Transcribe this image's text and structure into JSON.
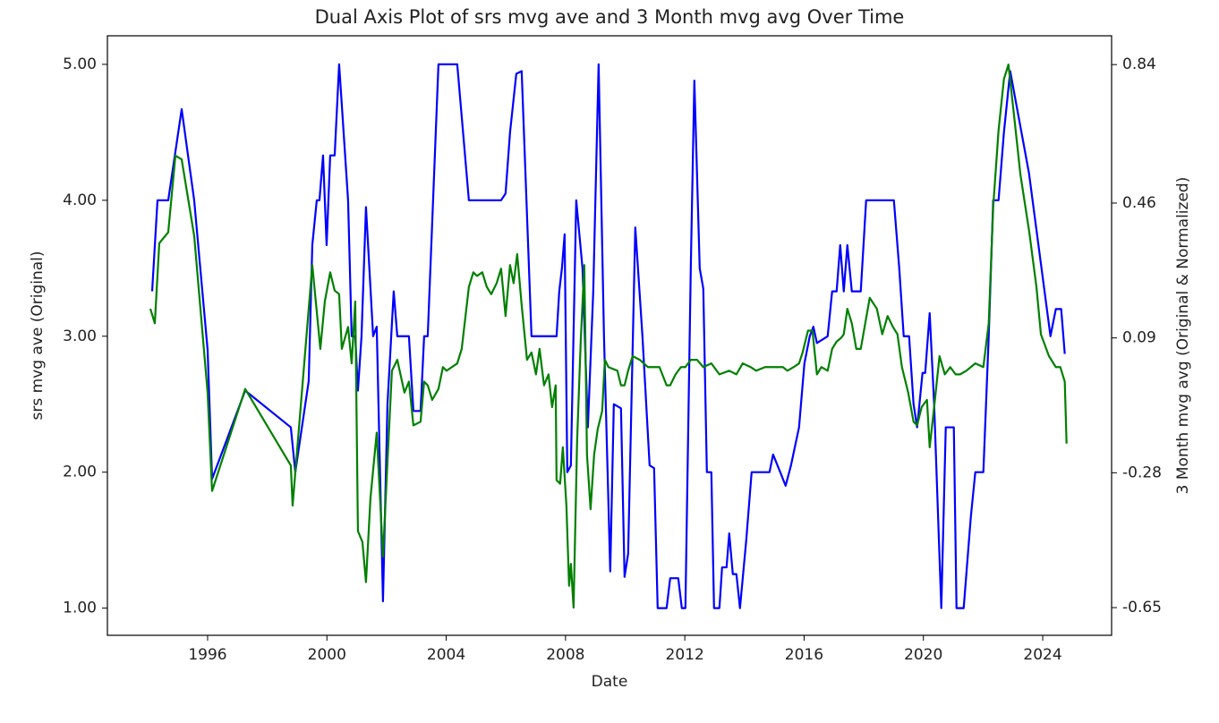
{
  "chart_data": {
    "type": "line",
    "title": "Dual Axis Plot of srs mvg ave and 3 Month mvg avg Over Time",
    "xlabel": "Date",
    "ylabel": "srs mvg ave (Original)",
    "y2label": "3 Month mvg avg (Original & Normalized)",
    "ylabel_color": "#4040ff",
    "y2label_color": "#008000",
    "ytick_color": "#ff0000",
    "y2tick_color": "#ffa500",
    "xlim": [
      1992.64,
      2026.31
    ],
    "xticks": [
      1996,
      2000,
      2004,
      2008,
      2012,
      2016,
      2020,
      2024
    ],
    "ylim": [
      0.8,
      5.21
    ],
    "yticks": [
      {
        "value": 1,
        "label": "1.00"
      },
      {
        "value": 2,
        "label": "2.00"
      },
      {
        "value": 3,
        "label": "3.00"
      },
      {
        "value": 4,
        "label": "4.00"
      },
      {
        "value": 5,
        "label": "5.00"
      }
    ],
    "y2lim": [
      -0.726,
      0.919
    ],
    "y2ticks": [
      -0.65,
      -0.28,
      0.09,
      0.46,
      0.84
    ],
    "series": [
      {
        "color": "#0000ff",
        "axis": "y",
        "x": [
          1994.14,
          1994.32,
          1994.68,
          1995.13,
          1995.55,
          1996.0,
          1996.15,
          1997.26,
          1998.79,
          1998.94,
          1999.39,
          1999.51,
          1999.66,
          1999.75,
          1999.87,
          1999.99,
          2000.11,
          2000.26,
          2000.41,
          2000.71,
          2000.83,
          2000.95,
          2001.04,
          2001.16,
          2001.31,
          2001.55,
          2001.67,
          2001.88,
          2002.03,
          2002.24,
          2002.36,
          2002.75,
          2002.9,
          2003.14,
          2003.26,
          2003.38,
          2003.74,
          2004.37,
          2004.76,
          2005.84,
          2005.99,
          2006.14,
          2006.35,
          2006.53,
          2006.86,
          2007.7,
          2007.79,
          2007.88,
          2007.97,
          2008.06,
          2008.18,
          2008.36,
          2008.57,
          2008.75,
          2008.93,
          2009.11,
          2009.29,
          2009.5,
          2009.62,
          2009.86,
          2009.98,
          2010.1,
          2010.34,
          2010.58,
          2010.82,
          2010.97,
          2011.09,
          2011.39,
          2011.51,
          2011.78,
          2011.9,
          2012.02,
          2012.2,
          2012.32,
          2012.5,
          2012.62,
          2012.74,
          2012.89,
          2012.98,
          2013.16,
          2013.25,
          2013.4,
          2013.49,
          2013.61,
          2013.73,
          2013.85,
          2014.06,
          2014.24,
          2014.84,
          2014.96,
          2015.2,
          2015.38,
          2015.56,
          2015.83,
          2016.01,
          2016.19,
          2016.31,
          2016.43,
          2016.79,
          2016.94,
          2017.09,
          2017.21,
          2017.33,
          2017.45,
          2017.6,
          2017.9,
          2018.08,
          2019.01,
          2019.19,
          2019.34,
          2019.52,
          2019.67,
          2019.79,
          2019.97,
          2020.06,
          2020.21,
          2020.36,
          2020.6,
          2020.75,
          2021.02,
          2021.11,
          2021.35,
          2021.59,
          2021.74,
          2022.01,
          2022.19,
          2022.34,
          2022.52,
          2022.7,
          2022.91,
          2023.54,
          2024.26,
          2024.44,
          2024.62,
          2024.74
        ],
        "values": [
          3.33,
          4.0,
          4.0,
          4.67,
          4.0,
          2.9,
          1.95,
          2.6,
          2.33,
          2.0,
          2.67,
          3.67,
          4.0,
          4.0,
          4.33,
          3.67,
          4.33,
          4.33,
          5.0,
          4.0,
          3.0,
          3.0,
          2.6,
          3.0,
          3.95,
          3.0,
          3.07,
          1.05,
          2.5,
          3.33,
          3.0,
          3.0,
          2.45,
          2.45,
          3.0,
          3.0,
          5.0,
          5.0,
          4.0,
          4.0,
          4.05,
          4.5,
          4.93,
          4.95,
          3.0,
          3.0,
          3.33,
          3.5,
          3.75,
          2.0,
          2.05,
          4.0,
          3.5,
          2.33,
          3.33,
          5.0,
          3.0,
          1.27,
          2.5,
          2.47,
          1.23,
          1.4,
          3.8,
          3.0,
          2.05,
          2.03,
          1.0,
          1.0,
          1.22,
          1.22,
          1.0,
          1.0,
          3.5,
          4.88,
          3.5,
          3.35,
          2.0,
          2.0,
          1.0,
          1.0,
          1.3,
          1.3,
          1.55,
          1.25,
          1.25,
          1.0,
          1.5,
          2.0,
          2.0,
          2.13,
          2.0,
          1.9,
          2.05,
          2.33,
          2.8,
          3.0,
          3.07,
          2.95,
          3.0,
          3.33,
          3.33,
          3.67,
          3.33,
          3.67,
          3.33,
          3.33,
          4.0,
          4.0,
          3.5,
          3.0,
          3.0,
          2.5,
          2.33,
          2.73,
          2.73,
          3.17,
          2.5,
          1.0,
          2.33,
          2.33,
          1.0,
          1.0,
          1.67,
          2.0,
          2.0,
          3.0,
          4.0,
          4.0,
          4.5,
          4.95,
          4.2,
          3.0,
          3.2,
          3.2,
          2.87
        ]
      },
      {
        "color": "#008000",
        "axis": "y2",
        "x": [
          1994.08,
          1994.23,
          1994.38,
          1994.68,
          1994.92,
          1995.13,
          1995.55,
          1996.0,
          1996.15,
          1997.26,
          1998.79,
          1998.85,
          1999.51,
          1999.78,
          1999.93,
          2000.11,
          2000.26,
          2000.41,
          2000.5,
          2000.71,
          2000.83,
          2000.95,
          2001.04,
          2001.19,
          2001.31,
          2001.46,
          2001.67,
          2001.88,
          2002.03,
          2002.18,
          2002.36,
          2002.6,
          2002.75,
          2002.9,
          2003.14,
          2003.26,
          2003.38,
          2003.53,
          2003.74,
          2003.89,
          2004.01,
          2004.37,
          2004.52,
          2004.76,
          2004.91,
          2005.03,
          2005.21,
          2005.36,
          2005.51,
          2005.69,
          2005.84,
          2005.99,
          2006.14,
          2006.26,
          2006.38,
          2006.53,
          2006.71,
          2006.86,
          2007.01,
          2007.13,
          2007.28,
          2007.43,
          2007.55,
          2007.67,
          2007.7,
          2007.82,
          2007.91,
          2008.03,
          2008.12,
          2008.18,
          2008.27,
          2008.39,
          2008.51,
          2008.63,
          2008.72,
          2008.84,
          2008.96,
          2009.08,
          2009.23,
          2009.32,
          2009.44,
          2009.74,
          2009.86,
          2009.98,
          2010.1,
          2010.25,
          2010.49,
          2010.76,
          2010.94,
          2011.15,
          2011.39,
          2011.51,
          2011.69,
          2011.87,
          2012.02,
          2012.2,
          2012.41,
          2012.62,
          2012.89,
          2013.16,
          2013.49,
          2013.73,
          2013.94,
          2014.21,
          2014.39,
          2014.69,
          2014.99,
          2015.29,
          2015.44,
          2015.65,
          2015.83,
          2015.95,
          2016.13,
          2016.28,
          2016.43,
          2016.58,
          2016.79,
          2016.94,
          2017.09,
          2017.24,
          2017.33,
          2017.45,
          2017.6,
          2017.75,
          2017.9,
          2018.05,
          2018.2,
          2018.44,
          2018.62,
          2018.8,
          2018.98,
          2019.13,
          2019.28,
          2019.49,
          2019.67,
          2019.79,
          2019.94,
          2020.12,
          2020.21,
          2020.36,
          2020.54,
          2020.72,
          2020.9,
          2021.08,
          2021.23,
          2021.44,
          2021.59,
          2021.74,
          2022.01,
          2022.19,
          2022.34,
          2022.52,
          2022.7,
          2022.85,
          2023.04,
          2023.25,
          2023.55,
          2023.79,
          2023.94,
          2024.21,
          2024.44,
          2024.59,
          2024.74,
          2024.8
        ],
        "values": [
          0.17,
          0.13,
          0.35,
          0.38,
          0.59,
          0.58,
          0.37,
          -0.06,
          -0.33,
          -0.05,
          -0.26,
          -0.37,
          0.29,
          0.06,
          0.19,
          0.27,
          0.22,
          0.21,
          0.06,
          0.12,
          0.02,
          0.19,
          -0.44,
          -0.47,
          -0.58,
          -0.35,
          -0.17,
          -0.51,
          -0.25,
          0,
          0.03,
          -0.06,
          -0.03,
          -0.15,
          -0.14,
          -0.03,
          -0.04,
          -0.08,
          -0.05,
          0.01,
          0,
          0.02,
          0.06,
          0.23,
          0.27,
          0.26,
          0.27,
          0.23,
          0.21,
          0.24,
          0.28,
          0.15,
          0.29,
          0.24,
          0.32,
          0.18,
          0.03,
          0.05,
          -0.01,
          0.06,
          -0.04,
          -0.01,
          -0.1,
          -0.04,
          -0.3,
          -0.31,
          -0.21,
          -0.37,
          -0.59,
          -0.53,
          -0.65,
          -0.19,
          0.08,
          0.29,
          -0.23,
          -0.38,
          -0.23,
          -0.16,
          -0.11,
          0.03,
          0.01,
          0,
          -0.04,
          -0.04,
          0,
          0.04,
          0.03,
          0.01,
          0.01,
          0.01,
          -0.04,
          -0.04,
          -0.01,
          0.01,
          0.01,
          0.03,
          0.03,
          0.01,
          0.02,
          -0.01,
          0,
          -0.01,
          0.02,
          0.01,
          0,
          0.01,
          0.01,
          0.01,
          0,
          0.01,
          0.02,
          0.05,
          0.11,
          0.11,
          -0.01,
          0.01,
          0,
          0.06,
          0.08,
          0.09,
          0.1,
          0.17,
          0.13,
          0.06,
          0.06,
          0.13,
          0.2,
          0.17,
          0.1,
          0.15,
          0.12,
          0.1,
          0.01,
          -0.06,
          -0.14,
          -0.15,
          -0.1,
          -0.08,
          -0.21,
          -0.1,
          0.04,
          -0.01,
          0.01,
          -0.01,
          -0.01,
          0,
          0.01,
          0.02,
          0.01,
          0.13,
          0.45,
          0.66,
          0.8,
          0.84,
          0.7,
          0.54,
          0.38,
          0.23,
          0.1,
          0.04,
          0.01,
          0.01,
          -0.03,
          -0.2
        ]
      }
    ]
  }
}
